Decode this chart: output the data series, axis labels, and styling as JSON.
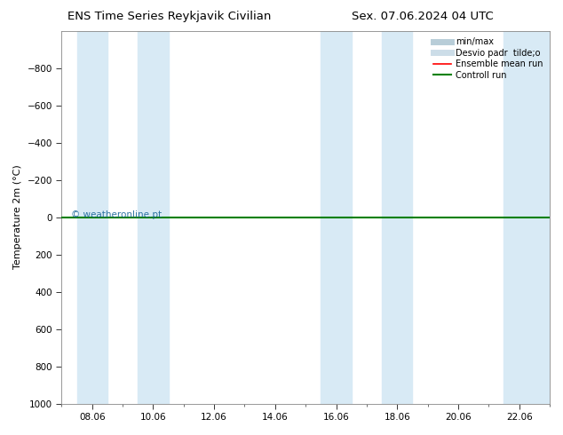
{
  "title_left": "ENS Time Series Reykjavik Civilian",
  "title_right": "Sex. 07.06.2024 04 UTC",
  "ylabel": "Temperature 2m (°C)",
  "ylim": [
    -1000,
    1000
  ],
  "yticks": [
    -800,
    -600,
    -400,
    -200,
    0,
    200,
    400,
    600,
    800,
    1000
  ],
  "xtick_labels": [
    "08.06",
    "10.06",
    "12.06",
    "14.06",
    "16.06",
    "18.06",
    "20.06",
    "22.06"
  ],
  "xtick_positions": [
    1,
    3,
    5,
    7,
    9,
    11,
    13,
    15
  ],
  "shaded_bands": [
    {
      "xstart": 0.5,
      "xend": 1.5
    },
    {
      "xstart": 2.5,
      "xend": 3.5
    },
    {
      "xstart": 8.5,
      "xend": 9.5
    },
    {
      "xstart": 10.5,
      "xend": 11.5
    },
    {
      "xstart": 14.5,
      "xend": 16
    }
  ],
  "ensemble_line_y": 0,
  "control_line_y": 0,
  "watermark": "© weatheronline.pt",
  "legend_items": [
    {
      "label": "min/max",
      "color": "#b8cdd8",
      "lw": 5
    },
    {
      "label": "Desvio padr  tilde;o",
      "color": "#ccdde8",
      "lw": 5
    },
    {
      "label": "Ensemble mean run",
      "color": "red",
      "lw": 1.2
    },
    {
      "label": "Controll run",
      "color": "green",
      "lw": 1.5
    }
  ],
  "bg_color": "#ffffff",
  "plot_bg_color": "#ffffff",
  "shaded_color": "#d8eaf5",
  "tick_color": "#333333",
  "title_fontsize": 9.5,
  "axis_label_fontsize": 8,
  "tick_fontsize": 7.5
}
